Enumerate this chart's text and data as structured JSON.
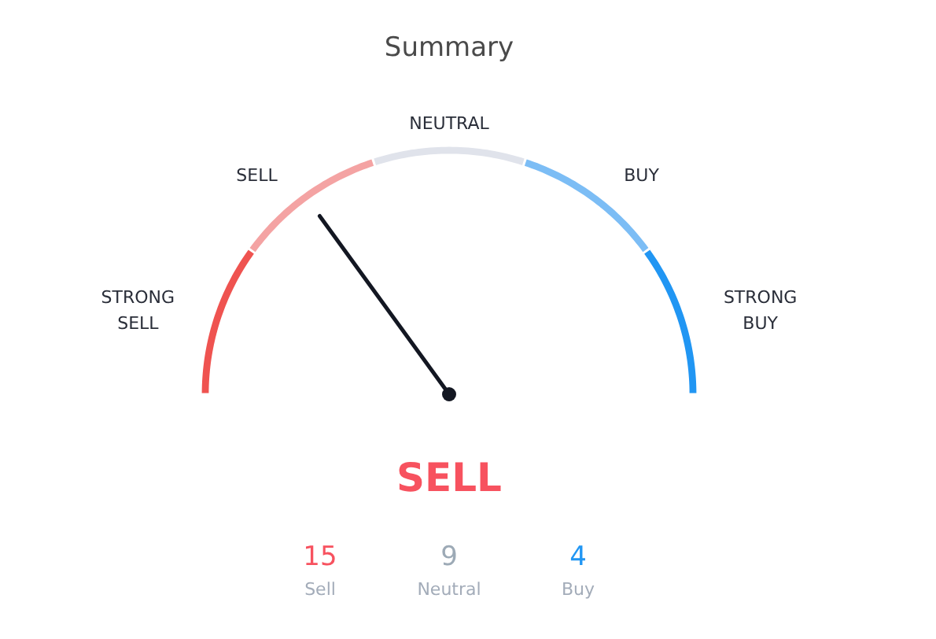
{
  "chart_data": [
    {
      "type": "donut",
      "title": "Summary",
      "categories": [
        "STRONG SELL",
        "SELL",
        "NEUTRAL",
        "BUY",
        "STRONG BUY"
      ],
      "values": [
        20,
        20,
        20,
        20,
        20
      ],
      "colors": [
        "#ef5350",
        "#f4a3a3",
        "#e0e3eb",
        "#7cbdf5",
        "#2196f3"
      ],
      "needle": "SELL",
      "annotations": [
        "SELL"
      ]
    },
    {
      "type": "other",
      "categories": [
        "Sell",
        "Neutral",
        "Buy"
      ],
      "values": [
        15,
        9,
        4
      ],
      "data_labels": true
    }
  ]
}
